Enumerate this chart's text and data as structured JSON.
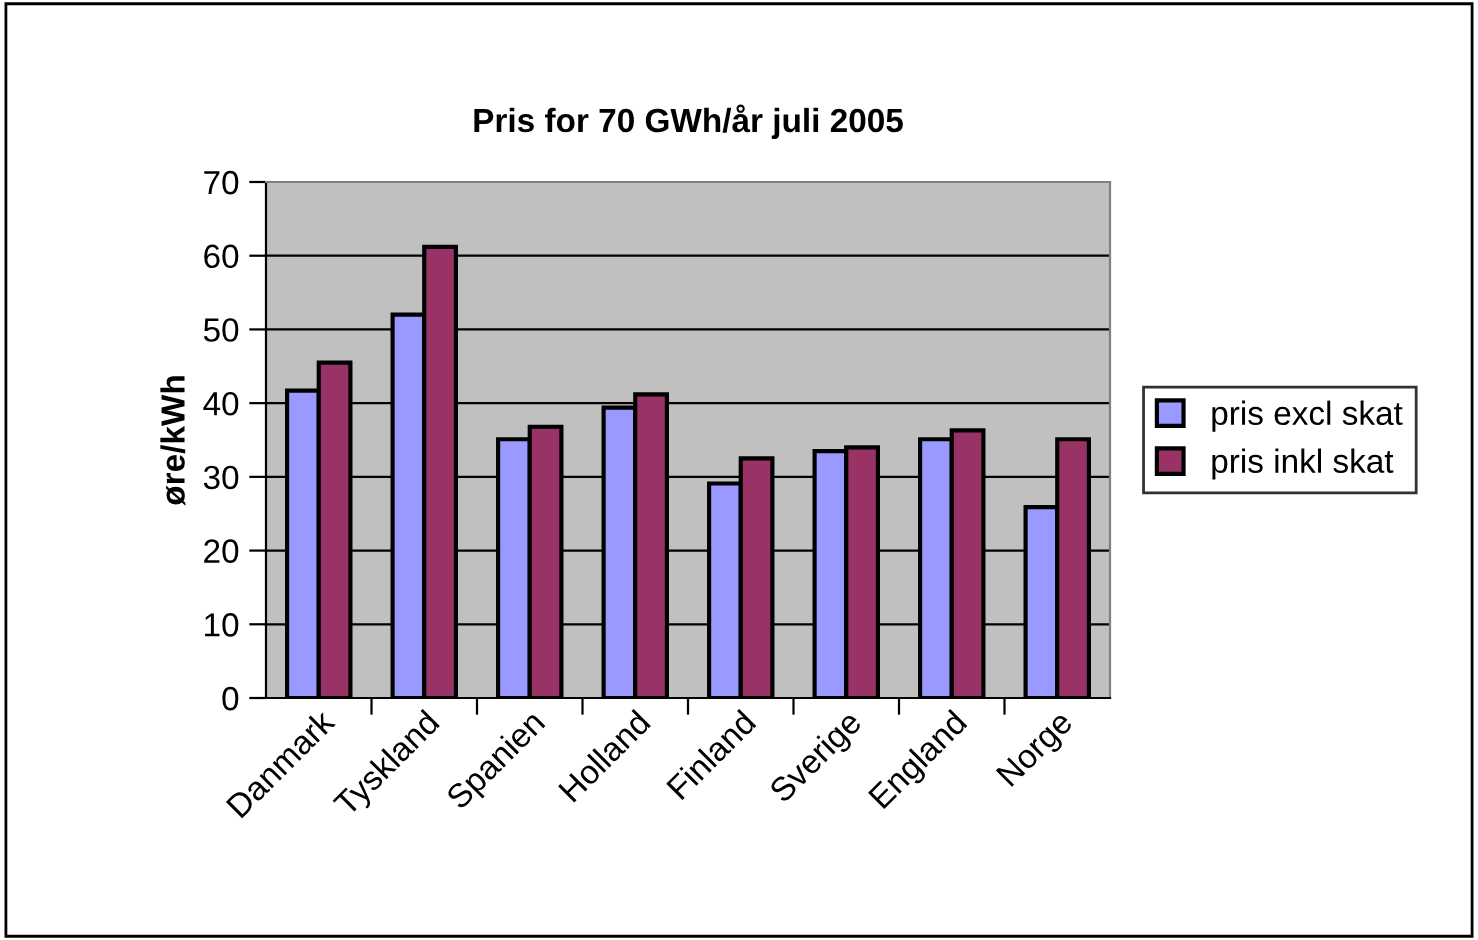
{
  "chart_data": {
    "type": "bar",
    "title": "Pris for 70 GWh/år juli 2005",
    "ylabel": "øre/kWh",
    "categories": [
      "Danmark",
      "Tyskland",
      "Spanien",
      "Holland",
      "Finland",
      "Sverige",
      "England",
      "Norge"
    ],
    "series": [
      {
        "name": "pris excl skat",
        "color": "#9999ff",
        "values": [
          41.7,
          52.0,
          35.1,
          39.4,
          29.1,
          33.5,
          35.1,
          25.9
        ]
      },
      {
        "name": "pris inkl skat",
        "color": "#993366",
        "values": [
          45.5,
          61.2,
          36.8,
          41.2,
          32.5,
          34.0,
          36.3,
          35.1
        ]
      }
    ],
    "ylim": [
      0,
      70
    ],
    "yticks": [
      0,
      10,
      20,
      30,
      40,
      50,
      60,
      70
    ],
    "grid": "y",
    "legend": "right"
  }
}
